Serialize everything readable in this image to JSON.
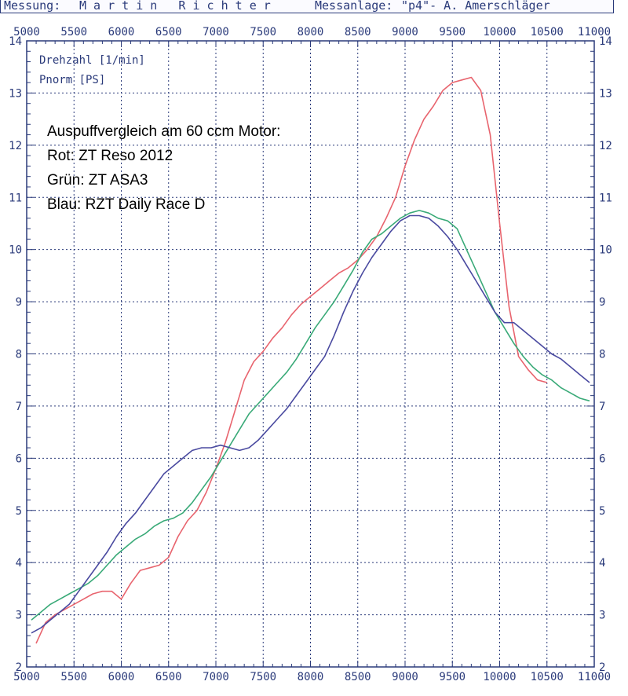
{
  "header": {
    "left_label": "Messung:",
    "left_value": "M a r t i n   R i c h t e r",
    "right_label": "Messanlage:",
    "right_value": "\"p4\"- A. Amerschläger"
  },
  "colors": {
    "axis": "#2a3a7a",
    "grid": "#2a3a7a",
    "red": "#e8646e",
    "green": "#3aaa78",
    "blue": "#4a4aa0"
  },
  "chart_data": {
    "type": "line",
    "title": "",
    "xlabel": "Drehzahl [1/min]",
    "ylabel": "Pnorm [PS]",
    "xlim": [
      5000,
      11000
    ],
    "ylim": [
      2,
      14
    ],
    "x_ticks": [
      "5000",
      "5500",
      "6000",
      "6500",
      "7000",
      "7500",
      "8000",
      "8500",
      "9000",
      "9500",
      "10000",
      "10500",
      "11000"
    ],
    "y_ticks": [
      "2",
      "3",
      "4",
      "5",
      "6",
      "7",
      "8",
      "9",
      "10",
      "11",
      "12",
      "13",
      "14"
    ],
    "grid": true,
    "annotations": [
      "Auspuffvergleich am 60 ccm Motor:",
      "Rot: ZT Reso 2012",
      "Grün: ZT ASA3",
      "Blau: RZT Daily Race D"
    ],
    "series": [
      {
        "color": "red",
        "x": [
          5100,
          5200,
          5300,
          5400,
          5500,
          5600,
          5700,
          5800,
          5900,
          6000,
          6100,
          6200,
          6300,
          6400,
          6500,
          6600,
          6700,
          6800,
          6900,
          7000,
          7100,
          7200,
          7300,
          7400,
          7500,
          7600,
          7700,
          7800,
          7900,
          8000,
          8100,
          8200,
          8300,
          8400,
          8500,
          8600,
          8700,
          8800,
          8900,
          9000,
          9100,
          9200,
          9300,
          9400,
          9500,
          9600,
          9700,
          9800,
          9900,
          10000,
          10100,
          10200,
          10300,
          10400,
          10500
        ],
        "y": [
          2.45,
          2.85,
          3.0,
          3.1,
          3.2,
          3.3,
          3.4,
          3.45,
          3.45,
          3.3,
          3.6,
          3.85,
          3.9,
          3.95,
          4.1,
          4.5,
          4.8,
          5.0,
          5.35,
          5.8,
          6.3,
          6.9,
          7.5,
          7.85,
          8.05,
          8.3,
          8.5,
          8.75,
          8.95,
          9.1,
          9.25,
          9.4,
          9.55,
          9.65,
          9.8,
          10.0,
          10.25,
          10.6,
          11.0,
          11.6,
          12.1,
          12.5,
          12.75,
          13.05,
          13.2,
          13.25,
          13.3,
          13.05,
          12.2,
          10.5,
          8.9,
          7.95,
          7.7,
          7.5,
          7.45
        ]
      },
      {
        "color": "green",
        "x": [
          5050,
          5150,
          5250,
          5350,
          5450,
          5550,
          5650,
          5750,
          5850,
          5950,
          6050,
          6150,
          6250,
          6350,
          6450,
          6550,
          6650,
          6750,
          6850,
          6950,
          7050,
          7150,
          7250,
          7350,
          7450,
          7550,
          7650,
          7750,
          7850,
          7950,
          8050,
          8150,
          8250,
          8350,
          8450,
          8550,
          8650,
          8750,
          8850,
          8950,
          9050,
          9150,
          9250,
          9350,
          9450,
          9550,
          9650,
          9750,
          9850,
          9950,
          10050,
          10150,
          10250,
          10350,
          10450,
          10550,
          10650,
          10750,
          10850,
          10950
        ],
        "y": [
          2.9,
          3.05,
          3.2,
          3.3,
          3.4,
          3.5,
          3.6,
          3.75,
          3.95,
          4.15,
          4.3,
          4.45,
          4.55,
          4.7,
          4.8,
          4.85,
          4.95,
          5.15,
          5.4,
          5.65,
          5.95,
          6.25,
          6.55,
          6.85,
          7.05,
          7.25,
          7.45,
          7.65,
          7.9,
          8.2,
          8.5,
          8.75,
          9.0,
          9.3,
          9.6,
          9.95,
          10.2,
          10.3,
          10.45,
          10.6,
          10.7,
          10.75,
          10.7,
          10.6,
          10.55,
          10.4,
          10.0,
          9.6,
          9.2,
          8.8,
          8.5,
          8.2,
          7.95,
          7.75,
          7.6,
          7.5,
          7.35,
          7.25,
          7.15,
          7.1
        ]
      },
      {
        "color": "blue",
        "x": [
          5050,
          5150,
          5250,
          5350,
          5450,
          5550,
          5650,
          5750,
          5850,
          5950,
          6050,
          6150,
          6250,
          6350,
          6450,
          6550,
          6650,
          6750,
          6850,
          6950,
          7050,
          7150,
          7250,
          7350,
          7450,
          7550,
          7650,
          7750,
          7850,
          7950,
          8050,
          8150,
          8250,
          8350,
          8450,
          8550,
          8650,
          8750,
          8850,
          8950,
          9050,
          9150,
          9250,
          9350,
          9450,
          9550,
          9650,
          9750,
          9850,
          9950,
          10050,
          10150,
          10250,
          10350,
          10450,
          10550,
          10650,
          10750,
          10850,
          10950
        ],
        "y": [
          2.65,
          2.75,
          2.9,
          3.05,
          3.2,
          3.45,
          3.7,
          3.95,
          4.2,
          4.5,
          4.75,
          4.95,
          5.2,
          5.45,
          5.7,
          5.85,
          6.0,
          6.15,
          6.2,
          6.2,
          6.25,
          6.2,
          6.15,
          6.2,
          6.35,
          6.55,
          6.75,
          6.95,
          7.2,
          7.45,
          7.7,
          7.95,
          8.35,
          8.8,
          9.2,
          9.55,
          9.85,
          10.1,
          10.35,
          10.55,
          10.65,
          10.65,
          10.6,
          10.45,
          10.25,
          10.0,
          9.7,
          9.4,
          9.1,
          8.8,
          8.6,
          8.6,
          8.45,
          8.3,
          8.15,
          8.0,
          7.9,
          7.75,
          7.6,
          7.45
        ]
      }
    ]
  }
}
